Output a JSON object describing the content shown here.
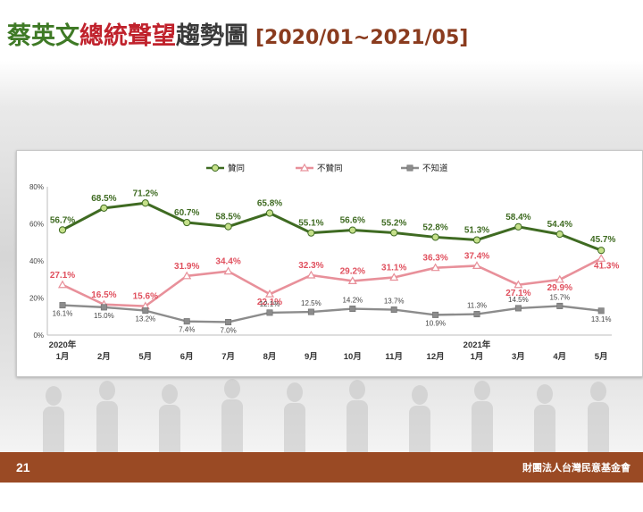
{
  "title": {
    "part1": "蔡英文",
    "part2": "總統聲望",
    "part3": "趨勢圖",
    "range": "[2020/01~2021/05]"
  },
  "footer": {
    "page_number": "21",
    "organization": "財團法人台灣民意基金會"
  },
  "chart_data": {
    "type": "line",
    "categories": [
      "2020年1月",
      "2月",
      "5月",
      "6月",
      "7月",
      "8月",
      "9月",
      "10月",
      "11月",
      "12月",
      "2021年1月",
      "3月",
      "4月",
      "5月"
    ],
    "x_tick_labels": [
      [
        "2020年",
        "1月"
      ],
      [
        "2月"
      ],
      [
        "5月"
      ],
      [
        "6月"
      ],
      [
        "7月"
      ],
      [
        "8月"
      ],
      [
        "9月"
      ],
      [
        "10月"
      ],
      [
        "11月"
      ],
      [
        "12月"
      ],
      [
        "2021年",
        "1月"
      ],
      [
        "3月"
      ],
      [
        "4月"
      ],
      [
        "5月"
      ]
    ],
    "y_ticks": [
      "0%",
      "20%",
      "40%",
      "60%",
      "80%"
    ],
    "ylim": [
      0,
      80
    ],
    "legend_position": "top",
    "grid": false,
    "series": [
      {
        "name": "贊同",
        "color": "#3f6b22",
        "marker": "circle",
        "values": [
          56.7,
          68.5,
          71.2,
          60.7,
          58.5,
          65.8,
          55.1,
          56.6,
          55.2,
          52.8,
          51.3,
          58.4,
          54.4,
          45.7
        ],
        "labels": [
          "56.7%",
          "68.5%",
          "71.2%",
          "60.7%",
          "58.5%",
          "65.8%",
          "55.1%",
          "56.6%",
          "55.2%",
          "52.8%",
          "51.3%",
          "58.4%",
          "54.4%",
          "45.7%"
        ]
      },
      {
        "name": "不贊同",
        "color": "#e8909a",
        "marker": "triangle",
        "values": [
          27.1,
          16.5,
          15.6,
          31.9,
          34.4,
          22.1,
          32.3,
          29.2,
          31.1,
          36.3,
          37.4,
          27.1,
          29.9,
          41.3
        ],
        "labels": [
          "27.1%",
          "16.5%",
          "15.6%",
          "31.9%",
          "34.4%",
          "22.1%",
          "32.3%",
          "29.2%",
          "31.1%",
          "36.3%",
          "37.4%",
          "27.1%",
          "29.9%",
          "41.3%"
        ]
      },
      {
        "name": "不知道",
        "color": "#8c8c8c",
        "marker": "square",
        "values": [
          16.1,
          15.0,
          13.2,
          7.4,
          7.0,
          12.1,
          12.5,
          14.2,
          13.7,
          10.9,
          11.3,
          14.5,
          15.7,
          13.1
        ],
        "labels": [
          "16.1%",
          "15.0%",
          "13.2%",
          "7.4%",
          "7.0%",
          "12.1%",
          "12.5%",
          "14.2%",
          "13.7%",
          "10.9%",
          "11.3%",
          "14.5%",
          "15.7%",
          "13.1%"
        ]
      }
    ]
  }
}
